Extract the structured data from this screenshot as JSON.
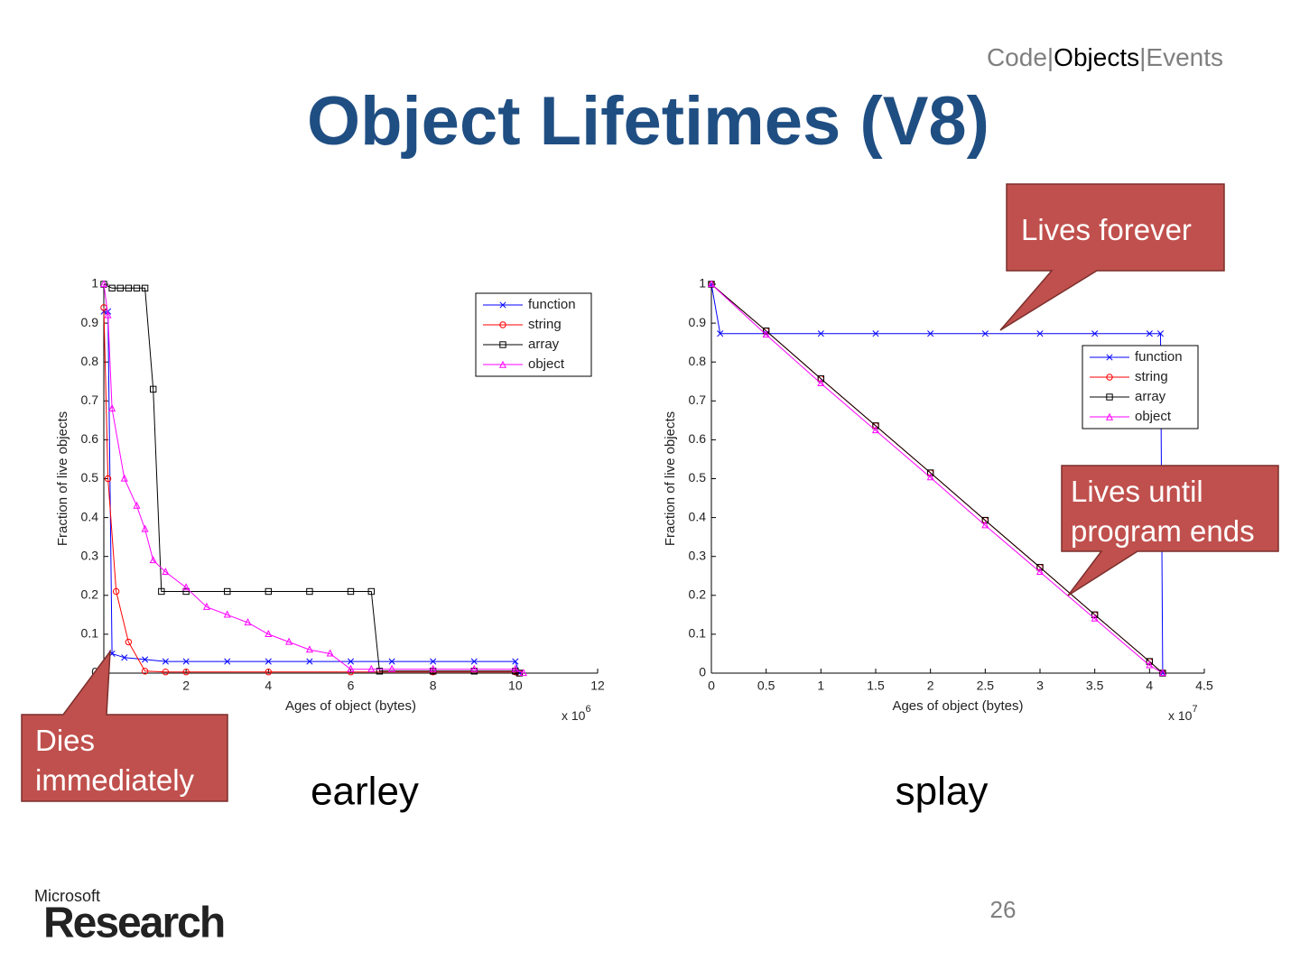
{
  "header": {
    "nav": {
      "items": [
        "Code",
        "Objects",
        "Events"
      ],
      "separator": "|",
      "active": 1
    },
    "title": "Object Lifetimes (V8)"
  },
  "callouts": [
    {
      "lines": [
        "Lives forever"
      ]
    },
    {
      "lines": [
        "Lives until",
        "program ends"
      ]
    },
    {
      "lines": [
        "Dies",
        "immediately"
      ]
    }
  ],
  "footer": {
    "logo_small": "Microsoft",
    "logo_large": "Research",
    "page_number": "26"
  },
  "chart_data": [
    {
      "type": "line",
      "caption": "earley",
      "xlabel": "Ages of object (bytes)",
      "ylabel": "Fraction of live objects",
      "x_multiplier": {
        "base": "x 10",
        "exponent": "6"
      },
      "xlim": [
        0,
        12
      ],
      "ylim": [
        0,
        1
      ],
      "xticks": [
        2,
        4,
        6,
        8,
        10,
        12
      ],
      "yticks": [
        0,
        0.1,
        0.2,
        0.3,
        0.4,
        0.5,
        0.6,
        0.7,
        0.8,
        0.9,
        1
      ],
      "legend": "upper right",
      "series": [
        {
          "name": "function",
          "color": "#0000ff",
          "marker": "x",
          "x": [
            0,
            0.1,
            0.2,
            0.5,
            1,
            1.5,
            2,
            3,
            4,
            5,
            6,
            7,
            8,
            9,
            10,
            10.1
          ],
          "values": [
            0.93,
            0.93,
            0.05,
            0.04,
            0.035,
            0.03,
            0.03,
            0.03,
            0.03,
            0.03,
            0.03,
            0.03,
            0.03,
            0.03,
            0.03,
            0
          ]
        },
        {
          "name": "string",
          "color": "#ff0000",
          "marker": "o",
          "x": [
            0,
            0.1,
            0.3,
            0.6,
            1,
            1.5,
            2,
            4,
            6,
            8,
            10,
            10.1
          ],
          "values": [
            0.94,
            0.5,
            0.21,
            0.08,
            0.005,
            0.003,
            0.003,
            0.003,
            0.003,
            0.003,
            0.003,
            0
          ]
        },
        {
          "name": "array",
          "color": "#000000",
          "marker": "s",
          "x": [
            0,
            0.2,
            0.4,
            0.6,
            0.8,
            1,
            1.2,
            1.4,
            2,
            3,
            4,
            5,
            6,
            6.5,
            6.7,
            8,
            9,
            10,
            10.1
          ],
          "values": [
            1,
            0.99,
            0.99,
            0.99,
            0.99,
            0.99,
            0.73,
            0.21,
            0.21,
            0.21,
            0.21,
            0.21,
            0.21,
            0.21,
            0.005,
            0.005,
            0.005,
            0.005,
            0
          ]
        },
        {
          "name": "object",
          "color": "#ff00ff",
          "marker": "^",
          "x": [
            0,
            0.1,
            0.2,
            0.5,
            0.8,
            1,
            1.2,
            1.5,
            2,
            2.5,
            3,
            3.5,
            4,
            4.5,
            5,
            5.5,
            6,
            6.5,
            7,
            8,
            9,
            10,
            10.2
          ],
          "values": [
            1,
            0.92,
            0.68,
            0.5,
            0.43,
            0.37,
            0.29,
            0.26,
            0.22,
            0.17,
            0.15,
            0.13,
            0.1,
            0.08,
            0.06,
            0.05,
            0.01,
            0.01,
            0.01,
            0.01,
            0.01,
            0.01,
            0
          ]
        }
      ]
    },
    {
      "type": "line",
      "caption": "splay",
      "xlabel": "Ages of object (bytes)",
      "ylabel": "Fraction of live objects",
      "x_multiplier": {
        "base": "x 10",
        "exponent": "7"
      },
      "xlim": [
        0,
        4.5
      ],
      "ylim": [
        0,
        1
      ],
      "xticks": [
        0,
        0.5,
        1,
        1.5,
        2,
        2.5,
        3,
        3.5,
        4,
        4.5
      ],
      "yticks": [
        0,
        0.1,
        0.2,
        0.3,
        0.4,
        0.5,
        0.6,
        0.7,
        0.8,
        0.9,
        1
      ],
      "legend": "center right",
      "series": [
        {
          "name": "function",
          "color": "#0000ff",
          "marker": "x",
          "x": [
            0,
            0.08,
            0.5,
            1,
            1.5,
            2,
            2.5,
            3,
            3.5,
            4,
            4.1,
            4.12
          ],
          "values": [
            1,
            0.873,
            0.873,
            0.873,
            0.873,
            0.873,
            0.873,
            0.873,
            0.873,
            0.873,
            0.873,
            0
          ]
        },
        {
          "name": "string",
          "color": "#ff0000",
          "marker": "o",
          "x": [
            0,
            0.5,
            1,
            1.5,
            2,
            2.5,
            3,
            3.5,
            4,
            4.12
          ],
          "values": [
            1,
            0.88,
            0.757,
            0.636,
            0.515,
            0.393,
            0.272,
            0.15,
            0.03,
            0
          ]
        },
        {
          "name": "array",
          "color": "#000000",
          "marker": "s",
          "x": [
            0,
            0.5,
            1,
            1.5,
            2,
            2.5,
            3,
            3.5,
            4,
            4.12
          ],
          "values": [
            1,
            0.88,
            0.757,
            0.636,
            0.515,
            0.393,
            0.272,
            0.15,
            0.03,
            0
          ]
        },
        {
          "name": "object",
          "color": "#ff00ff",
          "marker": "^",
          "x": [
            0,
            0.5,
            1,
            1.5,
            2,
            2.5,
            3,
            3.5,
            4,
            4.12
          ],
          "values": [
            1,
            0.87,
            0.745,
            0.624,
            0.503,
            0.38,
            0.26,
            0.14,
            0.02,
            0
          ]
        }
      ]
    }
  ]
}
